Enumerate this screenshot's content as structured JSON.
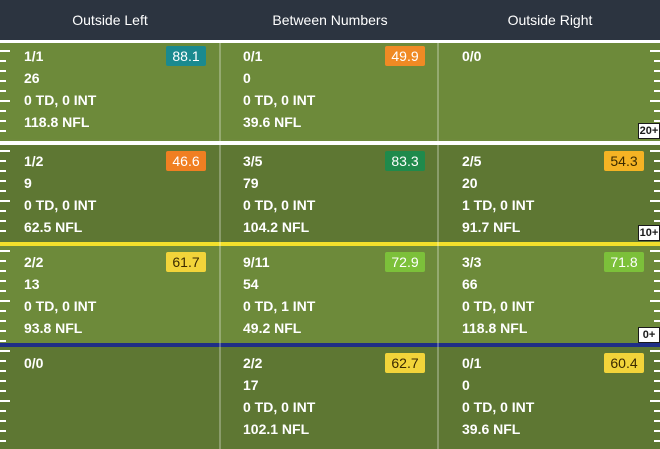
{
  "header": {
    "columns": [
      "Outside Left",
      "Between Numbers",
      "Outside Right"
    ]
  },
  "yard_markers": [
    "20+",
    "10+",
    "0+"
  ],
  "colors": {
    "header_bg": "#2c3440",
    "field_light": "#6d8a3a",
    "field_dark": "#5e7733",
    "line_20": "#ffffff",
    "line_10": "#f2e02c",
    "line_0": "#1f2e86"
  },
  "rows": [
    {
      "cells": [
        {
          "comp": "1/1",
          "yards": "26",
          "tdint": "0 TD, 0 INT",
          "rating": "118.8 NFL",
          "grade": "88.1",
          "grade_color": "#1a8a8f",
          "grade_text": "#ffffff"
        },
        {
          "comp": "0/1",
          "yards": "0",
          "tdint": "0 TD, 0 INT",
          "rating": "39.6 NFL",
          "grade": "49.9",
          "grade_color": "#f08a24",
          "grade_text": "#ffffff"
        },
        {
          "comp": "0/0",
          "yards": "",
          "tdint": "",
          "rating": "",
          "grade": "",
          "grade_color": "",
          "grade_text": ""
        }
      ]
    },
    {
      "cells": [
        {
          "comp": "1/2",
          "yards": "9",
          "tdint": "0 TD, 0 INT",
          "rating": "62.5 NFL",
          "grade": "46.6",
          "grade_color": "#f07f22",
          "grade_text": "#ffffff"
        },
        {
          "comp": "3/5",
          "yards": "79",
          "tdint": "0 TD, 0 INT",
          "rating": "104.2 NFL",
          "grade": "83.3",
          "grade_color": "#1f8a4c",
          "grade_text": "#ffffff"
        },
        {
          "comp": "2/5",
          "yards": "20",
          "tdint": "1 TD, 0 INT",
          "rating": "91.7 NFL",
          "grade": "54.3",
          "grade_color": "#f5b324",
          "grade_text": "#3a2a00"
        }
      ]
    },
    {
      "cells": [
        {
          "comp": "2/2",
          "yards": "13",
          "tdint": "0 TD, 0 INT",
          "rating": "93.8 NFL",
          "grade": "61.7",
          "grade_color": "#f2d43a",
          "grade_text": "#3a2a00"
        },
        {
          "comp": "9/11",
          "yards": "54",
          "tdint": "0 TD, 1 INT",
          "rating": "49.2 NFL",
          "grade": "72.9",
          "grade_color": "#7cc03a",
          "grade_text": "#ffffff"
        },
        {
          "comp": "3/3",
          "yards": "66",
          "tdint": "0 TD, 0 INT",
          "rating": "118.8 NFL",
          "grade": "71.8",
          "grade_color": "#7cc03a",
          "grade_text": "#ffffff"
        }
      ]
    },
    {
      "cells": [
        {
          "comp": "0/0",
          "yards": "",
          "tdint": "",
          "rating": "",
          "grade": "",
          "grade_color": "",
          "grade_text": ""
        },
        {
          "comp": "2/2",
          "yards": "17",
          "tdint": "0 TD, 0 INT",
          "rating": "102.1 NFL",
          "grade": "62.7",
          "grade_color": "#f2d43a",
          "grade_text": "#3a2a00"
        },
        {
          "comp": "0/1",
          "yards": "0",
          "tdint": "0 TD, 0 INT",
          "rating": "39.6 NFL",
          "grade": "60.4",
          "grade_color": "#f2d43a",
          "grade_text": "#3a2a00"
        }
      ]
    }
  ]
}
